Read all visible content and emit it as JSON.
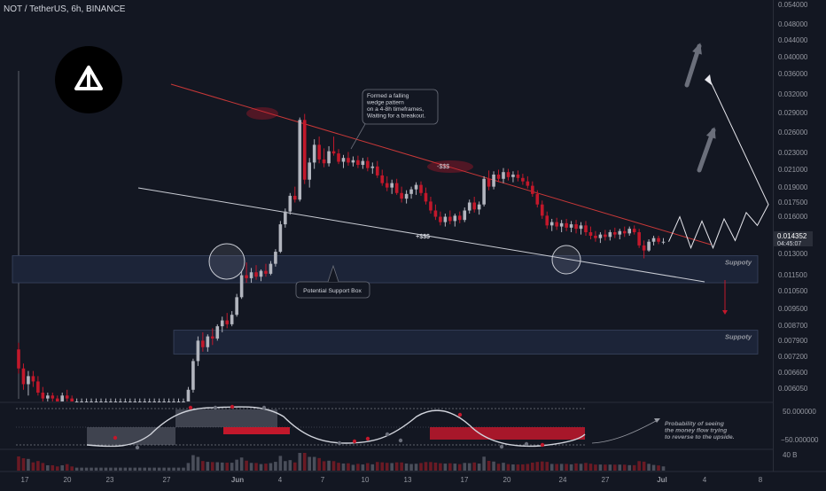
{
  "header": {
    "symbol_line": "NOT / TetherUS, 6h, BINANCE"
  },
  "colors": {
    "background": "#131722",
    "up": "#b2b5be",
    "down": "#c2182b",
    "wedge_top": "#c93838",
    "wedge_bottom": "#c9ccd4",
    "support_box": "#1c2438",
    "annotation": "#d1d4dc"
  },
  "price_axis": {
    "ticks": [
      "0.054000",
      "0.048000",
      "0.044000",
      "0.040000",
      "0.036000",
      "0.032000",
      "0.029000",
      "0.026000",
      "0.023000",
      "0.021000",
      "0.019000",
      "0.017500",
      "0.016000",
      "0.014352",
      "0.013000",
      "0.011500",
      "0.010500",
      "0.009500",
      "0.008700",
      "0.007900",
      "0.007200",
      "0.006600",
      "0.006050"
    ],
    "current_price": "0.014352",
    "countdown": "04:45:07"
  },
  "osc_axis": {
    "ticks": [
      "50.000000",
      "−50.000000"
    ]
  },
  "volume_axis": {
    "label": "40 B"
  },
  "time_axis": {
    "labels": [
      "17",
      "20",
      "23",
      "27",
      "Jun",
      "4",
      "7",
      "10",
      "13",
      "17",
      "20",
      "24",
      "27",
      "Jul",
      "4",
      "8"
    ]
  },
  "annotations": {
    "wedge_note": [
      "Formed a falling",
      "wedge pattern",
      "on a 4-8h timeframes,",
      "Waiting for a breakout."
    ],
    "support_box_note": "Potential Support Box",
    "support_label_1": "Suppoty",
    "support_label_2": "Suppoty",
    "liq_label_1": "-$$$",
    "liq_label_2": "+$$$",
    "money_flow_note": [
      "Probability of seeing",
      "the money flow trying",
      "to reverse to the upside."
    ]
  },
  "logo": {
    "name": "notcoin-logo"
  },
  "chart_data": {
    "type": "candlestick",
    "title": "NOT / TetherUS, 6h, BINANCE",
    "y_scale": "log",
    "ylim": [
      0.0058,
      0.057
    ],
    "candles": [
      {
        "o": 0.0078,
        "h": 0.0081,
        "l": 0.0068,
        "c": 0.007
      },
      {
        "o": 0.007,
        "h": 0.0072,
        "l": 0.0062,
        "c": 0.0064
      },
      {
        "o": 0.0064,
        "h": 0.0069,
        "l": 0.006,
        "c": 0.0067
      },
      {
        "o": 0.0067,
        "h": 0.0069,
        "l": 0.0063,
        "c": 0.0065
      },
      {
        "o": 0.0065,
        "h": 0.0067,
        "l": 0.006,
        "c": 0.0061
      },
      {
        "o": 0.0061,
        "h": 0.0063,
        "l": 0.0058,
        "c": 0.0059
      },
      {
        "o": 0.0059,
        "h": 0.0061,
        "l": 0.0058,
        "c": 0.006
      },
      {
        "o": 0.006,
        "h": 0.0061,
        "l": 0.0058,
        "c": 0.0059
      },
      {
        "o": 0.0059,
        "h": 0.006,
        "l": 0.0058,
        "c": 0.0058
      },
      {
        "o": 0.0058,
        "h": 0.0061,
        "l": 0.0058,
        "c": 0.006
      },
      {
        "o": 0.006,
        "h": 0.0062,
        "l": 0.0058,
        "c": 0.0059
      },
      {
        "o": 0.0059,
        "h": 0.006,
        "l": 0.0058,
        "c": 0.0058
      },
      {
        "o": 0.0058,
        "h": 0.0059,
        "l": 0.0058,
        "c": 0.0058
      },
      {
        "o": 0.0058,
        "h": 0.0059,
        "l": 0.0058,
        "c": 0.0058
      },
      {
        "o": 0.0058,
        "h": 0.0059,
        "l": 0.0058,
        "c": 0.0058
      },
      {
        "o": 0.0058,
        "h": 0.0059,
        "l": 0.0058,
        "c": 0.0058
      },
      {
        "o": 0.0058,
        "h": 0.0059,
        "l": 0.0058,
        "c": 0.0058
      },
      {
        "o": 0.0058,
        "h": 0.0059,
        "l": 0.0058,
        "c": 0.0058
      },
      {
        "o": 0.0058,
        "h": 0.0059,
        "l": 0.0058,
        "c": 0.0058
      },
      {
        "o": 0.0058,
        "h": 0.0059,
        "l": 0.0058,
        "c": 0.0058
      },
      {
        "o": 0.0058,
        "h": 0.0059,
        "l": 0.0058,
        "c": 0.0058
      },
      {
        "o": 0.0058,
        "h": 0.0059,
        "l": 0.0058,
        "c": 0.0058
      },
      {
        "o": 0.0058,
        "h": 0.0059,
        "l": 0.0058,
        "c": 0.0058
      },
      {
        "o": 0.0058,
        "h": 0.0059,
        "l": 0.0058,
        "c": 0.0058
      },
      {
        "o": 0.0058,
        "h": 0.0059,
        "l": 0.0058,
        "c": 0.0058
      },
      {
        "o": 0.0058,
        "h": 0.0059,
        "l": 0.0058,
        "c": 0.0058
      },
      {
        "o": 0.0058,
        "h": 0.0059,
        "l": 0.0058,
        "c": 0.0058
      },
      {
        "o": 0.0058,
        "h": 0.0059,
        "l": 0.0058,
        "c": 0.0058
      },
      {
        "o": 0.0058,
        "h": 0.0059,
        "l": 0.0058,
        "c": 0.0058
      },
      {
        "o": 0.0058,
        "h": 0.0059,
        "l": 0.0058,
        "c": 0.0058
      },
      {
        "o": 0.0058,
        "h": 0.0059,
        "l": 0.0058,
        "c": 0.0058
      },
      {
        "o": 0.0058,
        "h": 0.0059,
        "l": 0.0058,
        "c": 0.0058
      },
      {
        "o": 0.0058,
        "h": 0.0059,
        "l": 0.0058,
        "c": 0.0058
      },
      {
        "o": 0.0058,
        "h": 0.0059,
        "l": 0.0058,
        "c": 0.0058
      },
      {
        "o": 0.0058,
        "h": 0.0059,
        "l": 0.0058,
        "c": 0.0058
      },
      {
        "o": 0.0058,
        "h": 0.0063,
        "l": 0.0058,
        "c": 0.0062
      },
      {
        "o": 0.0062,
        "h": 0.0074,
        "l": 0.0061,
        "c": 0.0073
      },
      {
        "o": 0.0073,
        "h": 0.0084,
        "l": 0.0071,
        "c": 0.0082
      },
      {
        "o": 0.0082,
        "h": 0.0086,
        "l": 0.0077,
        "c": 0.0079
      },
      {
        "o": 0.0079,
        "h": 0.0085,
        "l": 0.0077,
        "c": 0.0084
      },
      {
        "o": 0.0084,
        "h": 0.0088,
        "l": 0.008,
        "c": 0.0083
      },
      {
        "o": 0.0083,
        "h": 0.009,
        "l": 0.0082,
        "c": 0.0089
      },
      {
        "o": 0.0089,
        "h": 0.0094,
        "l": 0.0086,
        "c": 0.0092
      },
      {
        "o": 0.0092,
        "h": 0.0096,
        "l": 0.0088,
        "c": 0.009
      },
      {
        "o": 0.009,
        "h": 0.0097,
        "l": 0.0089,
        "c": 0.0095
      },
      {
        "o": 0.0095,
        "h": 0.0107,
        "l": 0.0094,
        "c": 0.0105
      },
      {
        "o": 0.0105,
        "h": 0.0122,
        "l": 0.0104,
        "c": 0.0119
      },
      {
        "o": 0.0119,
        "h": 0.0128,
        "l": 0.0114,
        "c": 0.0117
      },
      {
        "o": 0.0117,
        "h": 0.0124,
        "l": 0.0114,
        "c": 0.0121
      },
      {
        "o": 0.0121,
        "h": 0.0126,
        "l": 0.0116,
        "c": 0.0118
      },
      {
        "o": 0.0118,
        "h": 0.0123,
        "l": 0.0115,
        "c": 0.0122
      },
      {
        "o": 0.0122,
        "h": 0.0127,
        "l": 0.0118,
        "c": 0.012
      },
      {
        "o": 0.012,
        "h": 0.0129,
        "l": 0.0119,
        "c": 0.0127
      },
      {
        "o": 0.0127,
        "h": 0.0138,
        "l": 0.0125,
        "c": 0.0136
      },
      {
        "o": 0.0136,
        "h": 0.0162,
        "l": 0.0135,
        "c": 0.0159
      },
      {
        "o": 0.0159,
        "h": 0.0174,
        "l": 0.0156,
        "c": 0.0171
      },
      {
        "o": 0.0171,
        "h": 0.019,
        "l": 0.0168,
        "c": 0.0187
      },
      {
        "o": 0.0187,
        "h": 0.0197,
        "l": 0.018,
        "c": 0.0183
      },
      {
        "o": 0.0183,
        "h": 0.0292,
        "l": 0.0181,
        "c": 0.0288
      },
      {
        "o": 0.0288,
        "h": 0.0298,
        "l": 0.02,
        "c": 0.0205
      },
      {
        "o": 0.0205,
        "h": 0.0232,
        "l": 0.0196,
        "c": 0.0226
      },
      {
        "o": 0.0226,
        "h": 0.0258,
        "l": 0.0218,
        "c": 0.025
      },
      {
        "o": 0.025,
        "h": 0.0262,
        "l": 0.0225,
        "c": 0.023
      },
      {
        "o": 0.023,
        "h": 0.0245,
        "l": 0.022,
        "c": 0.0225
      },
      {
        "o": 0.0225,
        "h": 0.0248,
        "l": 0.0221,
        "c": 0.0241
      },
      {
        "o": 0.0241,
        "h": 0.0262,
        "l": 0.0235,
        "c": 0.0238
      },
      {
        "o": 0.0238,
        "h": 0.0244,
        "l": 0.0224,
        "c": 0.0227
      },
      {
        "o": 0.0227,
        "h": 0.0236,
        "l": 0.0219,
        "c": 0.0232
      },
      {
        "o": 0.0232,
        "h": 0.024,
        "l": 0.0222,
        "c": 0.0226
      },
      {
        "o": 0.0226,
        "h": 0.0234,
        "l": 0.0221,
        "c": 0.0229
      },
      {
        "o": 0.0229,
        "h": 0.0235,
        "l": 0.0219,
        "c": 0.0223
      },
      {
        "o": 0.0223,
        "h": 0.0232,
        "l": 0.0218,
        "c": 0.0228
      },
      {
        "o": 0.0228,
        "h": 0.0233,
        "l": 0.0215,
        "c": 0.0219
      },
      {
        "o": 0.0219,
        "h": 0.0226,
        "l": 0.0212,
        "c": 0.0221
      },
      {
        "o": 0.0221,
        "h": 0.0228,
        "l": 0.0207,
        "c": 0.021
      },
      {
        "o": 0.021,
        "h": 0.0217,
        "l": 0.0198,
        "c": 0.0201
      },
      {
        "o": 0.0201,
        "h": 0.0209,
        "l": 0.0192,
        "c": 0.0196
      },
      {
        "o": 0.0196,
        "h": 0.0205,
        "l": 0.0189,
        "c": 0.0201
      },
      {
        "o": 0.0201,
        "h": 0.0206,
        "l": 0.0188,
        "c": 0.019
      },
      {
        "o": 0.019,
        "h": 0.0197,
        "l": 0.018,
        "c": 0.0184
      },
      {
        "o": 0.0184,
        "h": 0.0193,
        "l": 0.0179,
        "c": 0.0189
      },
      {
        "o": 0.0189,
        "h": 0.0197,
        "l": 0.0184,
        "c": 0.0194
      },
      {
        "o": 0.0194,
        "h": 0.0202,
        "l": 0.0188,
        "c": 0.0199
      },
      {
        "o": 0.0199,
        "h": 0.0203,
        "l": 0.0187,
        "c": 0.019
      },
      {
        "o": 0.019,
        "h": 0.0196,
        "l": 0.0178,
        "c": 0.0181
      },
      {
        "o": 0.0181,
        "h": 0.0186,
        "l": 0.0169,
        "c": 0.0172
      },
      {
        "o": 0.0172,
        "h": 0.0178,
        "l": 0.0163,
        "c": 0.0166
      },
      {
        "o": 0.0166,
        "h": 0.0171,
        "l": 0.0158,
        "c": 0.0161
      },
      {
        "o": 0.0161,
        "h": 0.0169,
        "l": 0.0157,
        "c": 0.0166
      },
      {
        "o": 0.0166,
        "h": 0.0172,
        "l": 0.0159,
        "c": 0.0162
      },
      {
        "o": 0.0162,
        "h": 0.0169,
        "l": 0.0157,
        "c": 0.0167
      },
      {
        "o": 0.0167,
        "h": 0.0171,
        "l": 0.016,
        "c": 0.0163
      },
      {
        "o": 0.0163,
        "h": 0.0175,
        "l": 0.0161,
        "c": 0.0172
      },
      {
        "o": 0.0172,
        "h": 0.0183,
        "l": 0.0169,
        "c": 0.018
      },
      {
        "o": 0.018,
        "h": 0.0186,
        "l": 0.017,
        "c": 0.0173
      },
      {
        "o": 0.0173,
        "h": 0.0181,
        "l": 0.0168,
        "c": 0.0178
      },
      {
        "o": 0.0178,
        "h": 0.0209,
        "l": 0.0176,
        "c": 0.0206
      },
      {
        "o": 0.0206,
        "h": 0.0216,
        "l": 0.0193,
        "c": 0.0197
      },
      {
        "o": 0.0197,
        "h": 0.0215,
        "l": 0.0194,
        "c": 0.0211
      },
      {
        "o": 0.0211,
        "h": 0.0217,
        "l": 0.0202,
        "c": 0.0206
      },
      {
        "o": 0.0206,
        "h": 0.0219,
        "l": 0.0201,
        "c": 0.0214
      },
      {
        "o": 0.0214,
        "h": 0.0218,
        "l": 0.0204,
        "c": 0.0208
      },
      {
        "o": 0.0208,
        "h": 0.0215,
        "l": 0.0202,
        "c": 0.0211
      },
      {
        "o": 0.0211,
        "h": 0.0216,
        "l": 0.0203,
        "c": 0.0207
      },
      {
        "o": 0.0207,
        "h": 0.0212,
        "l": 0.0199,
        "c": 0.0203
      },
      {
        "o": 0.0203,
        "h": 0.0209,
        "l": 0.0195,
        "c": 0.0198
      },
      {
        "o": 0.0198,
        "h": 0.0203,
        "l": 0.0186,
        "c": 0.0189
      },
      {
        "o": 0.0189,
        "h": 0.0193,
        "l": 0.0175,
        "c": 0.0178
      },
      {
        "o": 0.0178,
        "h": 0.0182,
        "l": 0.0164,
        "c": 0.0167
      },
      {
        "o": 0.0167,
        "h": 0.0171,
        "l": 0.0155,
        "c": 0.0158
      },
      {
        "o": 0.0158,
        "h": 0.0164,
        "l": 0.0153,
        "c": 0.0161
      },
      {
        "o": 0.0161,
        "h": 0.0165,
        "l": 0.0154,
        "c": 0.0157
      },
      {
        "o": 0.0157,
        "h": 0.0163,
        "l": 0.0152,
        "c": 0.016
      },
      {
        "o": 0.016,
        "h": 0.0164,
        "l": 0.0153,
        "c": 0.0156
      },
      {
        "o": 0.0156,
        "h": 0.0162,
        "l": 0.0152,
        "c": 0.0159
      },
      {
        "o": 0.0159,
        "h": 0.0163,
        "l": 0.0151,
        "c": 0.0155
      },
      {
        "o": 0.0155,
        "h": 0.0161,
        "l": 0.015,
        "c": 0.0158
      },
      {
        "o": 0.0158,
        "h": 0.0162,
        "l": 0.0149,
        "c": 0.0152
      },
      {
        "o": 0.0152,
        "h": 0.0157,
        "l": 0.0146,
        "c": 0.0149
      },
      {
        "o": 0.0149,
        "h": 0.0153,
        "l": 0.0144,
        "c": 0.0147
      },
      {
        "o": 0.0147,
        "h": 0.0152,
        "l": 0.0143,
        "c": 0.015
      },
      {
        "o": 0.015,
        "h": 0.0154,
        "l": 0.0145,
        "c": 0.0148
      },
      {
        "o": 0.0148,
        "h": 0.0154,
        "l": 0.0145,
        "c": 0.0152
      },
      {
        "o": 0.0152,
        "h": 0.0156,
        "l": 0.0147,
        "c": 0.015
      },
      {
        "o": 0.015,
        "h": 0.0155,
        "l": 0.0146,
        "c": 0.0153
      },
      {
        "o": 0.0153,
        "h": 0.0157,
        "l": 0.0148,
        "c": 0.0151
      },
      {
        "o": 0.0151,
        "h": 0.0157,
        "l": 0.0149,
        "c": 0.0155
      },
      {
        "o": 0.0155,
        "h": 0.0158,
        "l": 0.015,
        "c": 0.0152
      },
      {
        "o": 0.0152,
        "h": 0.0155,
        "l": 0.0139,
        "c": 0.0141
      },
      {
        "o": 0.0141,
        "h": 0.0145,
        "l": 0.0131,
        "c": 0.0137
      },
      {
        "o": 0.0137,
        "h": 0.0146,
        "l": 0.0136,
        "c": 0.0144
      },
      {
        "o": 0.0144,
        "h": 0.0149,
        "l": 0.0141,
        "c": 0.0147
      },
      {
        "o": 0.0147,
        "h": 0.0149,
        "l": 0.0142,
        "c": 0.0144
      },
      {
        "o": 0.0144,
        "h": 0.0147,
        "l": 0.0142,
        "c": 0.0144
      }
    ],
    "projection": [
      0.0144,
      0.0166,
      0.0139,
      0.0162,
      0.0139,
      0.0164,
      0.0145,
      0.017,
      0.0158,
      0.0178,
      0.0365
    ],
    "support_zones": [
      [
        0.0114,
        0.0133
      ],
      [
        0.0076,
        0.0087
      ]
    ],
    "oscillator_ylim": [
      -80,
      80
    ]
  }
}
